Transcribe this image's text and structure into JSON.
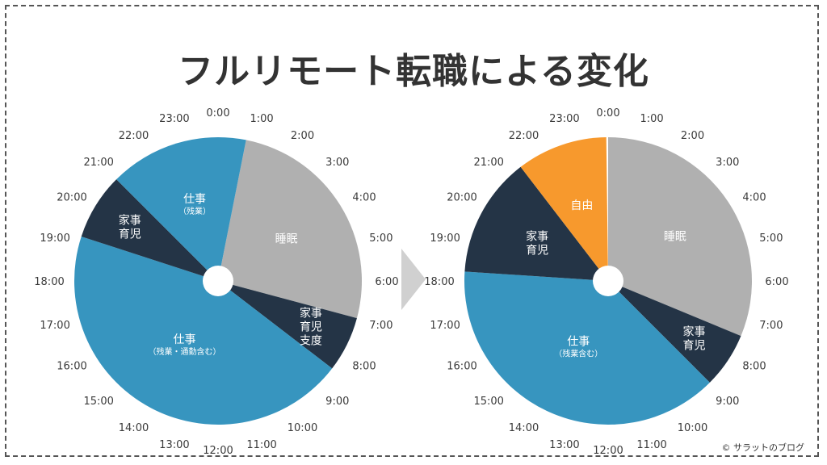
{
  "title": "フルリモート転職による変化",
  "credit": "© サラットのブログ",
  "hour_labels": [
    "0:00",
    "1:00",
    "2:00",
    "3:00",
    "4:00",
    "5:00",
    "6:00",
    "7:00",
    "8:00",
    "9:00",
    "10:00",
    "11:00",
    "12:00",
    "13:00",
    "14:00",
    "15:00",
    "16:00",
    "17:00",
    "18:00",
    "19:00",
    "20:00",
    "21:00",
    "22:00",
    "23:00"
  ],
  "colors": {
    "work": "#3795bf",
    "sleep": "#b0b0b0",
    "home": "#243446",
    "free": "#f7992d",
    "arrow": "#d0d0d0"
  },
  "chart_data": [
    {
      "type": "pie",
      "unit": "hour",
      "segments": [
        {
          "lines": [
            "睡眠"
          ],
          "sub": "",
          "start": 0.75,
          "end": 7.0,
          "color": "sleep"
        },
        {
          "lines": [
            "家事",
            "育児",
            "支度"
          ],
          "sub": "",
          "start": 7.0,
          "end": 8.5,
          "color": "home"
        },
        {
          "lines": [
            "仕事"
          ],
          "sub": "（残業・通勤含む）",
          "start": 8.5,
          "end": 19.2,
          "color": "work"
        },
        {
          "lines": [
            "家事",
            "育児"
          ],
          "sub": "",
          "start": 19.2,
          "end": 21.0,
          "color": "home"
        },
        {
          "lines": [
            "仕事"
          ],
          "sub": "（残業）",
          "start": 21.0,
          "end": 24.75,
          "color": "work"
        }
      ]
    },
    {
      "type": "pie",
      "unit": "hour",
      "segments": [
        {
          "lines": [
            "睡眠"
          ],
          "sub": "",
          "start": 0.0,
          "end": 7.5,
          "color": "sleep"
        },
        {
          "lines": [
            "家事",
            "育児"
          ],
          "sub": "",
          "start": 7.5,
          "end": 9.0,
          "color": "home"
        },
        {
          "lines": [
            "仕事"
          ],
          "sub": "（残業含む）",
          "start": 9.0,
          "end": 18.25,
          "color": "work"
        },
        {
          "lines": [
            "家事",
            "育児"
          ],
          "sub": "",
          "start": 18.25,
          "end": 21.5,
          "color": "home"
        },
        {
          "lines": [
            "自由"
          ],
          "sub": "",
          "start": 21.5,
          "end": 23.95,
          "color": "free"
        }
      ]
    }
  ]
}
